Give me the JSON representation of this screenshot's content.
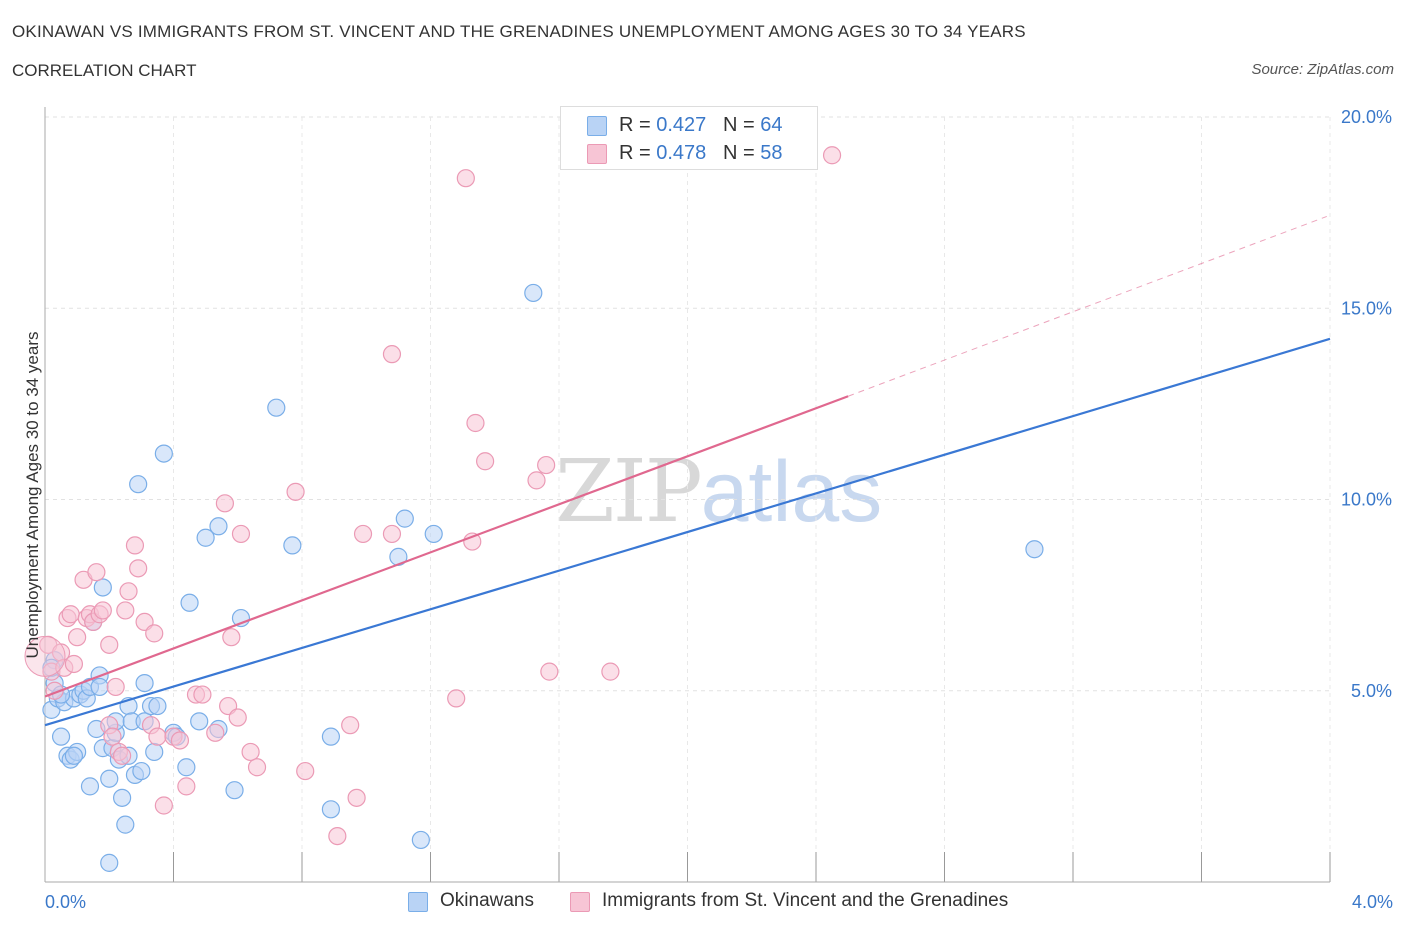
{
  "header": {
    "title": "OKINAWAN VS IMMIGRANTS FROM ST. VINCENT AND THE GRENADINES UNEMPLOYMENT AMONG AGES 30 TO 34 YEARS",
    "subtitle": "CORRELATION CHART",
    "source": "Source: ZipAtlas.com"
  },
  "watermark": {
    "zip": "ZIP",
    "atlas": "atlas"
  },
  "legend_top": {
    "rows": [
      {
        "r_label": "R = ",
        "r_value": "0.427",
        "n_label": "N = ",
        "n_value": "64",
        "color": "#b9d3f5"
      },
      {
        "r_label": "R = ",
        "r_value": "0.478",
        "n_label": "N = ",
        "n_value": "58",
        "color": "#f7c5d5"
      }
    ]
  },
  "chart_data": {
    "type": "scatter",
    "ylabel": "Unemployment Among Ages 30 to 34 years",
    "xlim": [
      0.0,
      4.0
    ],
    "ylim": [
      0.0,
      20.0
    ],
    "x_tick_labels": [
      "0.0%",
      "4.0%"
    ],
    "y_ticks": [
      5.0,
      10.0,
      15.0,
      20.0
    ],
    "y_tick_labels": [
      "5.0%",
      "10.0%",
      "15.0%",
      "20.0%"
    ],
    "grid": true,
    "legend_position": "bottom",
    "series": [
      {
        "name": "Okinawans",
        "color": "#7aaee8",
        "fill": "#b9d3f5",
        "line_color": "#3a78d4",
        "trend": {
          "x0": 0.0,
          "y0": 4.1,
          "x1": 4.0,
          "y1": 14.2
        },
        "points": [
          [
            0.02,
            4.5
          ],
          [
            0.03,
            5.2
          ],
          [
            0.03,
            5.8
          ],
          [
            0.04,
            4.8
          ],
          [
            0.05,
            3.8
          ],
          [
            0.06,
            4.7
          ],
          [
            0.07,
            3.3
          ],
          [
            0.08,
            3.2
          ],
          [
            0.09,
            4.8
          ],
          [
            0.1,
            3.4
          ],
          [
            0.11,
            4.9
          ],
          [
            0.12,
            5.0
          ],
          [
            0.13,
            4.8
          ],
          [
            0.14,
            5.1
          ],
          [
            0.14,
            2.5
          ],
          [
            0.15,
            6.8
          ],
          [
            0.16,
            4.0
          ],
          [
            0.17,
            5.4
          ],
          [
            0.17,
            5.1
          ],
          [
            0.18,
            7.7
          ],
          [
            0.18,
            3.5
          ],
          [
            0.2,
            2.7
          ],
          [
            0.21,
            3.5
          ],
          [
            0.22,
            3.9
          ],
          [
            0.22,
            4.2
          ],
          [
            0.23,
            3.2
          ],
          [
            0.24,
            2.2
          ],
          [
            0.25,
            1.5
          ],
          [
            0.26,
            3.3
          ],
          [
            0.26,
            4.6
          ],
          [
            0.27,
            4.2
          ],
          [
            0.28,
            2.8
          ],
          [
            0.29,
            10.4
          ],
          [
            0.3,
            2.9
          ],
          [
            0.31,
            5.2
          ],
          [
            0.31,
            4.2
          ],
          [
            0.33,
            4.6
          ],
          [
            0.34,
            3.4
          ],
          [
            0.35,
            4.6
          ],
          [
            0.37,
            11.2
          ],
          [
            0.4,
            3.9
          ],
          [
            0.41,
            3.8
          ],
          [
            0.44,
            3.0
          ],
          [
            0.45,
            7.3
          ],
          [
            0.48,
            4.2
          ],
          [
            0.5,
            9.0
          ],
          [
            0.54,
            9.3
          ],
          [
            0.54,
            4.0
          ],
          [
            0.59,
            2.4
          ],
          [
            0.61,
            6.9
          ],
          [
            0.72,
            12.4
          ],
          [
            0.77,
            8.8
          ],
          [
            0.89,
            3.8
          ],
          [
            0.89,
            1.9
          ],
          [
            1.1,
            8.5
          ],
          [
            1.12,
            9.5
          ],
          [
            1.17,
            1.1
          ],
          [
            1.21,
            9.1
          ],
          [
            1.52,
            15.4
          ],
          [
            3.08,
            8.7
          ],
          [
            0.2,
            0.5
          ],
          [
            0.02,
            5.6
          ],
          [
            0.05,
            4.9
          ],
          [
            0.09,
            3.3
          ]
        ]
      },
      {
        "name": "Immigrants from St. Vincent and the Grenadines",
        "color": "#eb9ab5",
        "fill": "#f7c5d5",
        "line_color": "#e0688f",
        "trend": {
          "x0": 0.0,
          "y0": 4.85,
          "x1": 2.5,
          "y1": 12.7
        },
        "trend_ext": {
          "x0": 2.5,
          "y0": 12.7,
          "x1": 3.99,
          "y1": 17.4
        },
        "points": [
          [
            0.01,
            6.2
          ],
          [
            0.02,
            5.5
          ],
          [
            0.03,
            5.0
          ],
          [
            0.05,
            6.0
          ],
          [
            0.06,
            5.6
          ],
          [
            0.07,
            6.9
          ],
          [
            0.08,
            7.0
          ],
          [
            0.09,
            5.7
          ],
          [
            0.1,
            6.4
          ],
          [
            0.12,
            7.9
          ],
          [
            0.13,
            6.9
          ],
          [
            0.14,
            7.0
          ],
          [
            0.15,
            6.8
          ],
          [
            0.16,
            8.1
          ],
          [
            0.17,
            7.0
          ],
          [
            0.18,
            7.1
          ],
          [
            0.2,
            4.1
          ],
          [
            0.2,
            6.2
          ],
          [
            0.21,
            3.8
          ],
          [
            0.22,
            5.1
          ],
          [
            0.23,
            3.4
          ],
          [
            0.24,
            3.3
          ],
          [
            0.25,
            7.1
          ],
          [
            0.26,
            7.6
          ],
          [
            0.28,
            8.8
          ],
          [
            0.29,
            8.2
          ],
          [
            0.31,
            6.8
          ],
          [
            0.33,
            4.1
          ],
          [
            0.34,
            6.5
          ],
          [
            0.35,
            3.8
          ],
          [
            0.37,
            2.0
          ],
          [
            0.4,
            3.8
          ],
          [
            0.42,
            3.7
          ],
          [
            0.44,
            2.5
          ],
          [
            0.47,
            4.9
          ],
          [
            0.49,
            4.9
          ],
          [
            0.53,
            3.9
          ],
          [
            0.56,
            9.9
          ],
          [
            0.57,
            4.6
          ],
          [
            0.58,
            6.4
          ],
          [
            0.6,
            4.3
          ],
          [
            0.61,
            9.1
          ],
          [
            0.64,
            3.4
          ],
          [
            0.66,
            3.0
          ],
          [
            0.78,
            10.2
          ],
          [
            0.81,
            2.9
          ],
          [
            0.91,
            1.2
          ],
          [
            0.95,
            4.1
          ],
          [
            0.97,
            2.2
          ],
          [
            0.99,
            9.1
          ],
          [
            1.08,
            9.1
          ],
          [
            1.08,
            13.8
          ],
          [
            1.28,
            4.8
          ],
          [
            1.31,
            18.4
          ],
          [
            1.33,
            8.9
          ],
          [
            1.34,
            12.0
          ],
          [
            1.37,
            11.0
          ],
          [
            1.53,
            10.5
          ]
        ],
        "extra_points": [
          [
            1.56,
            10.9
          ],
          [
            1.57,
            5.5
          ],
          [
            1.76,
            5.5
          ],
          [
            2.45,
            19.0
          ]
        ]
      }
    ]
  }
}
